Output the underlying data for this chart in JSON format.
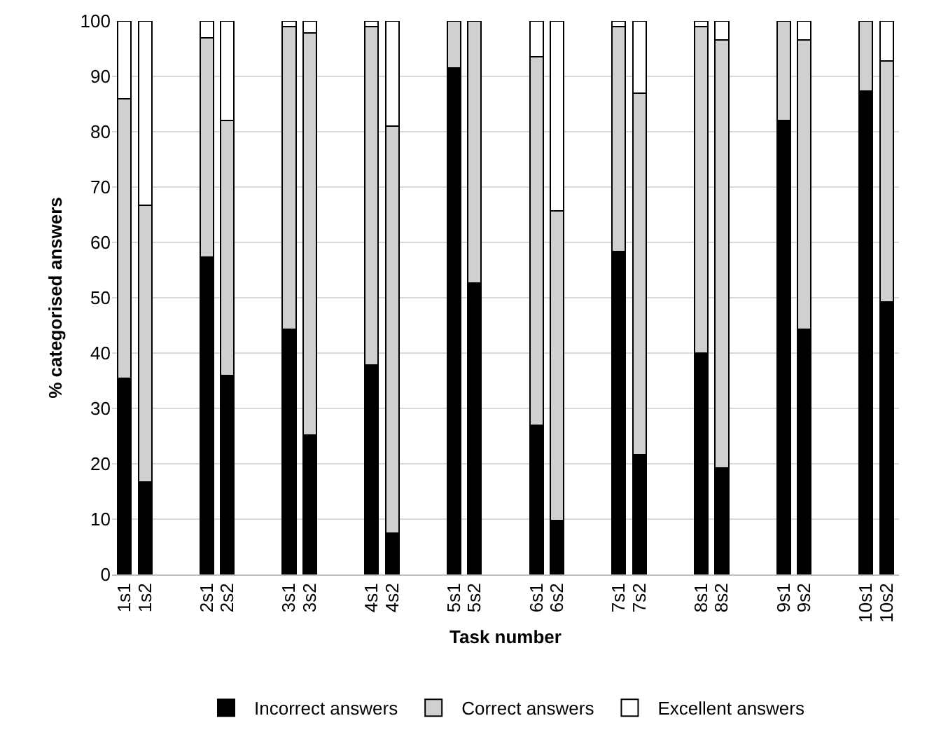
{
  "chart_data": {
    "type": "bar",
    "stacked": true,
    "xlabel": "Task number",
    "ylabel": "% categorised answers",
    "categories": [
      "1s1",
      "1s2",
      null,
      null,
      "2s1",
      "2s2",
      null,
      null,
      "3s1",
      "3s2",
      null,
      null,
      "4s1",
      "4s2",
      null,
      null,
      "5s1",
      "5s2",
      null,
      null,
      "6s1",
      "6s2",
      null,
      null,
      "7s1",
      "7s2",
      null,
      null,
      "8s1",
      "8s2",
      null,
      null,
      "9s1",
      "9s2",
      null,
      null,
      "10s1",
      "10s2"
    ],
    "series": [
      {
        "name": "Incorrect answers",
        "color": "#000000",
        "values": [
          35.5,
          16.7,
          null,
          null,
          57.3,
          36,
          null,
          null,
          44.3,
          25.2,
          null,
          null,
          37.9,
          7.5,
          null,
          null,
          91.5,
          52.7,
          null,
          null,
          27,
          9.7,
          null,
          null,
          58.4,
          21.7,
          null,
          null,
          40,
          19.3,
          null,
          null,
          82,
          44.3,
          null,
          null,
          87.4,
          49.2
        ]
      },
      {
        "name": "Correct answers",
        "color": "#d0d0d0",
        "values": [
          50.5,
          50,
          null,
          null,
          39.7,
          46,
          null,
          null,
          54.7,
          72.6,
          null,
          null,
          61.1,
          73.5,
          null,
          null,
          8.5,
          47.3,
          null,
          null,
          66.5,
          56,
          null,
          null,
          40.6,
          65.3,
          null,
          null,
          59,
          77.3,
          null,
          null,
          18,
          52.3,
          null,
          null,
          12.6,
          43.6
        ]
      },
      {
        "name": "Excellent answers",
        "color": "#ffffff",
        "values": [
          14,
          33.3,
          null,
          null,
          3,
          18,
          null,
          null,
          1,
          2.2,
          null,
          null,
          1,
          19,
          null,
          null,
          0,
          0,
          null,
          null,
          6.5,
          34.3,
          null,
          null,
          1,
          13,
          null,
          null,
          1,
          3.4,
          null,
          null,
          0,
          3.4,
          null,
          null,
          0,
          7.2
        ]
      }
    ],
    "ylim": [
      0,
      100
    ],
    "yticks": [
      0,
      10,
      20,
      30,
      40,
      50,
      60,
      70,
      80,
      90,
      100
    ],
    "grid": "y",
    "legend": "bottom"
  }
}
